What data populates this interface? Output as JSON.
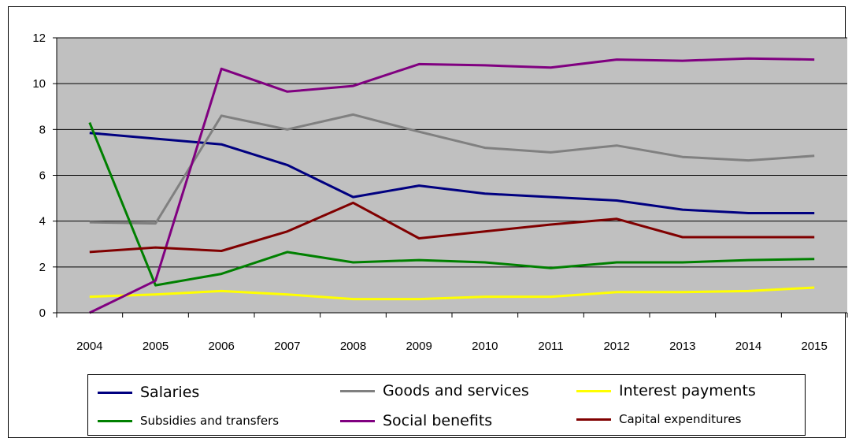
{
  "chart_data": {
    "type": "line",
    "categories": [
      "2004",
      "2005",
      "2006",
      "2007",
      "2008",
      "2009",
      "2010",
      "2011",
      "2012",
      "2013",
      "2014",
      "2015"
    ],
    "y_ticks": [
      "0",
      "2",
      "4",
      "6",
      "8",
      "10",
      "12"
    ],
    "ylim": [
      0,
      12
    ],
    "grid": true,
    "plot_background": "#C0C0C0",
    "legend_position": "bottom",
    "series": [
      {
        "name": "Salaries",
        "color": "#000080",
        "values": [
          7.85,
          7.6,
          7.35,
          6.45,
          5.05,
          5.55,
          5.2,
          5.05,
          4.9,
          4.5,
          4.35,
          4.35
        ]
      },
      {
        "name": "Goods and services",
        "color": "#808080",
        "values": [
          3.95,
          3.9,
          8.6,
          8.0,
          8.65,
          7.9,
          7.2,
          7.0,
          7.3,
          6.8,
          6.65,
          6.85
        ]
      },
      {
        "name": "Interest payments",
        "color": "#FFFF00",
        "values": [
          0.7,
          0.8,
          0.95,
          0.8,
          0.6,
          0.6,
          0.7,
          0.7,
          0.9,
          0.9,
          0.95,
          1.1
        ]
      },
      {
        "name": "Subsidies and transfers",
        "color": "#008000",
        "values": [
          8.3,
          1.2,
          1.7,
          2.65,
          2.2,
          2.3,
          2.2,
          1.95,
          2.2,
          2.2,
          2.3,
          2.35
        ]
      },
      {
        "name": "Social benefits",
        "color": "#800080",
        "values": [
          0.0,
          1.4,
          10.65,
          9.65,
          9.9,
          10.85,
          10.8,
          10.7,
          11.05,
          11.0,
          11.1,
          11.05
        ]
      },
      {
        "name": "Capital expenditures",
        "color": "#800000",
        "values": [
          2.65,
          2.85,
          2.7,
          3.55,
          4.8,
          3.25,
          3.55,
          3.85,
          4.1,
          3.3,
          3.3,
          3.3
        ]
      }
    ]
  }
}
